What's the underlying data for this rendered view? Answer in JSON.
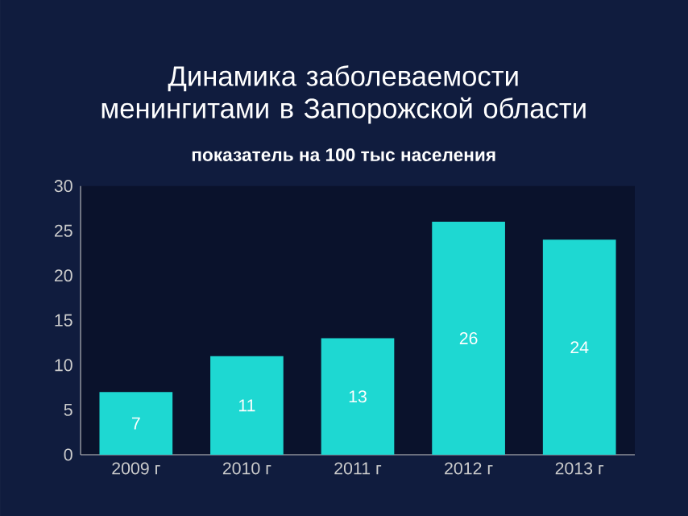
{
  "chart_data": {
    "type": "bar",
    "title": "Динамика заболеваемости менингитами в Запорожской области",
    "subtitle": "показатель на 100 тыс населения",
    "categories": [
      "2009 г",
      "2010 г",
      "2011 г",
      "2012 г",
      "2013 г"
    ],
    "values": [
      7,
      11,
      13,
      26,
      24
    ],
    "color": "#1ed8d2",
    "ylim": [
      0,
      30
    ],
    "yticks": [
      0,
      5,
      10,
      15,
      20,
      25,
      30
    ],
    "data_labels": true
  }
}
